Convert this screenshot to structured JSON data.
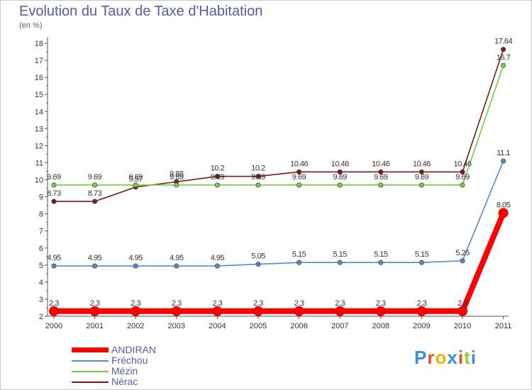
{
  "title": "Evolution du Taux de Taxe d'Habitation",
  "subtitle": "(en %)",
  "logo": {
    "text": "Proxiti",
    "colors": [
      "#3b8ed8",
      "#e8501f",
      "#f0b400",
      "#3b8ed8",
      "#e8501f",
      "#9bcc2a",
      "#3b8ed8"
    ]
  },
  "chart_data": {
    "type": "line",
    "x": [
      "2000",
      "2001",
      "2002",
      "2003",
      "2004",
      "2005",
      "2006",
      "2007",
      "2008",
      "2009",
      "2010",
      "2011"
    ],
    "ylim": [
      2,
      18
    ],
    "yticks": [
      "2",
      "3",
      "4",
      "5",
      "6",
      "7",
      "8",
      "9",
      "10",
      "11",
      "12",
      "13",
      "14",
      "15",
      "16",
      "17",
      "18"
    ],
    "grid": false,
    "legend_position": "bottom-left",
    "series": [
      {
        "name": "ANDIRAN",
        "color": "#ff0000",
        "values": [
          2.3,
          2.3,
          2.3,
          2.3,
          2.3,
          2.3,
          2.3,
          2.3,
          2.3,
          2.3,
          2.3,
          8.05
        ],
        "labels": [
          "2.3",
          "2.3",
          "2.3",
          "2.3",
          "2.3",
          "2.3",
          "2.3",
          "2.3",
          "2.3",
          "2.3",
          "2.3",
          "8.05"
        ]
      },
      {
        "name": "Fréchou",
        "color": "#4f8dcb",
        "values": [
          4.95,
          4.95,
          4.95,
          4.95,
          4.95,
          5.05,
          5.15,
          5.15,
          5.15,
          5.15,
          5.25,
          11.1
        ],
        "labels": [
          "4.95",
          "4.95",
          "4.95",
          "4.95",
          "4.95",
          "5.05",
          "5.15",
          "5.15",
          "5.15",
          "5.15",
          "5.25",
          "11.1"
        ]
      },
      {
        "name": "Mézin",
        "color": "#77cc44",
        "values": [
          9.69,
          9.69,
          9.69,
          9.69,
          9.69,
          9.69,
          9.69,
          9.69,
          9.69,
          9.69,
          9.69,
          16.7
        ],
        "labels": [
          "9.69",
          "9.69",
          "9.69",
          "9.69",
          "9.69",
          "9.69",
          "9.69",
          "9.69",
          "9.69",
          "9.69",
          "9.69",
          "16.7"
        ]
      },
      {
        "name": "Nérac",
        "color": "#7a1a1a",
        "values": [
          8.73,
          8.73,
          9.57,
          9.88,
          10.2,
          10.2,
          10.46,
          10.46,
          10.46,
          10.46,
          10.46,
          17.64
        ],
        "labels": [
          "8.73",
          "8.73",
          "9.57",
          "9.88",
          "10.2",
          "10.2",
          "10.46",
          "10.46",
          "10.46",
          "10.46",
          "10.46",
          "17.64"
        ]
      }
    ]
  }
}
